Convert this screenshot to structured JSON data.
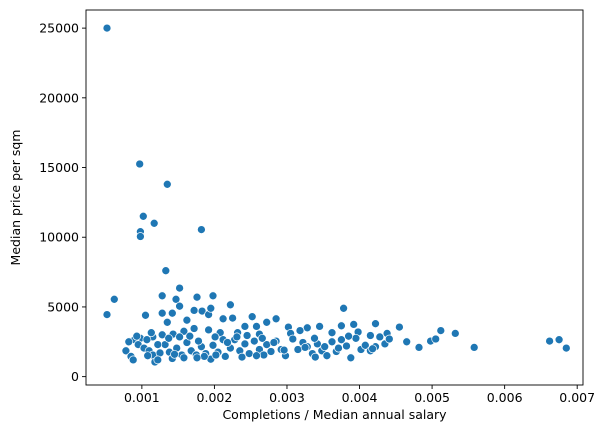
{
  "chart_data": {
    "type": "scatter",
    "title": "",
    "xlabel": "Completions / Median annual salary",
    "ylabel": "Median price per sqm",
    "xlim": [
      0.00023,
      0.00708
    ],
    "ylim": [
      -600,
      26300
    ],
    "xticks": [
      0.001,
      0.002,
      0.003,
      0.004,
      0.005,
      0.006,
      0.007
    ],
    "xtick_labels": [
      "0.001",
      "0.002",
      "0.003",
      "0.004",
      "0.005",
      "0.006",
      "0.007"
    ],
    "yticks": [
      0,
      5000,
      10000,
      15000,
      20000,
      25000
    ],
    "ytick_labels": [
      "0",
      "5000",
      "10000",
      "15000",
      "20000",
      "25000"
    ],
    "grid": false,
    "legend": false,
    "marker_color": "#1f77b4",
    "marker_edge_color": "#ffffff",
    "points": [
      [
        0.00052,
        25000
      ],
      [
        0.00097,
        15250
      ],
      [
        0.00135,
        13800
      ],
      [
        0.00102,
        11500
      ],
      [
        0.00117,
        11000
      ],
      [
        0.00098,
        10400
      ],
      [
        0.00098,
        10050
      ],
      [
        0.00182,
        10550
      ],
      [
        0.00133,
        7600
      ],
      [
        0.00062,
        5550
      ],
      [
        0.00052,
        4450
      ],
      [
        0.00152,
        6350
      ],
      [
        0.00176,
        5700
      ],
      [
        0.00198,
        5800
      ],
      [
        0.00128,
        5800
      ],
      [
        0.00147,
        5550
      ],
      [
        0.00222,
        5150
      ],
      [
        0.00378,
        4900
      ],
      [
        0.00152,
        5050
      ],
      [
        0.00142,
        4550
      ],
      [
        0.00105,
        4400
      ],
      [
        0.00128,
        4550
      ],
      [
        0.00135,
        3900
      ],
      [
        0.00172,
        4750
      ],
      [
        0.00183,
        4700
      ],
      [
        0.00192,
        4450
      ],
      [
        0.00162,
        4050
      ],
      [
        0.00212,
        4150
      ],
      [
        0.00225,
        4200
      ],
      [
        0.00252,
        4300
      ],
      [
        0.00258,
        3600
      ],
      [
        0.00272,
        3900
      ],
      [
        0.00285,
        4150
      ],
      [
        0.00242,
        3600
      ],
      [
        0.00302,
        3550
      ],
      [
        0.00328,
        3500
      ],
      [
        0.00345,
        3600
      ],
      [
        0.00375,
        3650
      ],
      [
        0.00392,
        3750
      ],
      [
        0.00422,
        3800
      ],
      [
        0.00455,
        3550
      ],
      [
        0.00438,
        3100
      ],
      [
        0.00415,
        2950
      ],
      [
        0.00398,
        3200
      ],
      [
        0.00362,
        3150
      ],
      [
        0.00318,
        3300
      ],
      [
        0.00305,
        3100
      ],
      [
        0.00262,
        3050
      ],
      [
        0.00232,
        3150
      ],
      [
        0.00208,
        3150
      ],
      [
        0.00192,
        3350
      ],
      [
        0.00172,
        3450
      ],
      [
        0.00158,
        3250
      ],
      [
        0.00143,
        3050
      ],
      [
        0.00128,
        3000
      ],
      [
        0.00115,
        2850
      ],
      [
        0.00098,
        2750
      ],
      [
        0.0009,
        2650
      ],
      [
        0.00082,
        2500
      ],
      [
        0.00078,
        1850
      ],
      [
        0.00085,
        1450
      ],
      [
        0.00088,
        1200
      ],
      [
        0.00095,
        2300
      ],
      [
        0.00103,
        2050
      ],
      [
        0.0011,
        1850
      ],
      [
        0.00115,
        1550
      ],
      [
        0.00118,
        1050
      ],
      [
        0.00125,
        1700
      ],
      [
        0.00132,
        2300
      ],
      [
        0.00138,
        1750
      ],
      [
        0.00142,
        1300
      ],
      [
        0.00148,
        2050
      ],
      [
        0.00155,
        1550
      ],
      [
        0.00162,
        2450
      ],
      [
        0.00168,
        1850
      ],
      [
        0.00175,
        1550
      ],
      [
        0.00182,
        2150
      ],
      [
        0.00188,
        1650
      ],
      [
        0.00195,
        1250
      ],
      [
        0.00198,
        2250
      ],
      [
        0.00205,
        1750
      ],
      [
        0.00212,
        2650
      ],
      [
        0.00215,
        1450
      ],
      [
        0.00222,
        2050
      ],
      [
        0.00228,
        2650
      ],
      [
        0.00235,
        1850
      ],
      [
        0.00242,
        2350
      ],
      [
        0.00248,
        1650
      ],
      [
        0.00255,
        2550
      ],
      [
        0.00262,
        1950
      ],
      [
        0.00268,
        1550
      ],
      [
        0.00272,
        2300
      ],
      [
        0.00278,
        1800
      ],
      [
        0.00285,
        2550
      ],
      [
        0.00292,
        1950
      ],
      [
        0.00298,
        1500
      ],
      [
        0.00308,
        2700
      ],
      [
        0.00315,
        1950
      ],
      [
        0.00322,
        2450
      ],
      [
        0.00328,
        2150
      ],
      [
        0.00335,
        1650
      ],
      [
        0.00342,
        2350
      ],
      [
        0.00348,
        1850
      ],
      [
        0.00355,
        1500
      ],
      [
        0.00362,
        2500
      ],
      [
        0.00368,
        1800
      ],
      [
        0.00375,
        2650
      ],
      [
        0.00382,
        2200
      ],
      [
        0.00388,
        1350
      ],
      [
        0.00395,
        2750
      ],
      [
        0.00402,
        1950
      ],
      [
        0.00408,
        2250
      ],
      [
        0.00415,
        1850
      ],
      [
        0.00422,
        2150
      ],
      [
        0.00428,
        2850
      ],
      [
        0.00435,
        2350
      ],
      [
        0.00465,
        2500
      ],
      [
        0.00482,
        2100
      ],
      [
        0.00498,
        2550
      ],
      [
        0.00505,
        2700
      ],
      [
        0.00512,
        3300
      ],
      [
        0.00532,
        3100
      ],
      [
        0.00558,
        2100
      ],
      [
        0.00662,
        2550
      ],
      [
        0.00675,
        2650
      ],
      [
        0.00685,
        2050
      ],
      [
        0.00093,
        2900
      ],
      [
        0.00107,
        2650
      ],
      [
        0.00113,
        3150
      ],
      [
        0.00122,
        2300
      ],
      [
        0.00137,
        2750
      ],
      [
        0.00145,
        1600
      ],
      [
        0.00152,
        2850
      ],
      [
        0.00166,
        2900
      ],
      [
        0.00178,
        2550
      ],
      [
        0.00186,
        1450
      ],
      [
        0.00201,
        2850
      ],
      [
        0.00218,
        2450
      ],
      [
        0.00231,
        2850
      ],
      [
        0.00245,
        2950
      ],
      [
        0.00266,
        2750
      ],
      [
        0.00282,
        2450
      ],
      [
        0.00296,
        1900
      ],
      [
        0.00325,
        2100
      ],
      [
        0.00338,
        2750
      ],
      [
        0.00352,
        2150
      ],
      [
        0.00371,
        2050
      ],
      [
        0.00385,
        2900
      ],
      [
        0.00418,
        2000
      ],
      [
        0.00441,
        2700
      ],
      [
        0.00202,
        1550
      ],
      [
        0.00238,
        1400
      ],
      [
        0.00258,
        1500
      ],
      [
        0.00176,
        1350
      ],
      [
        0.00108,
        1500
      ],
      [
        0.00122,
        1200
      ],
      [
        0.00158,
        1350
      ],
      [
        0.00339,
        1400
      ],
      [
        0.00195,
        4900
      ]
    ]
  }
}
